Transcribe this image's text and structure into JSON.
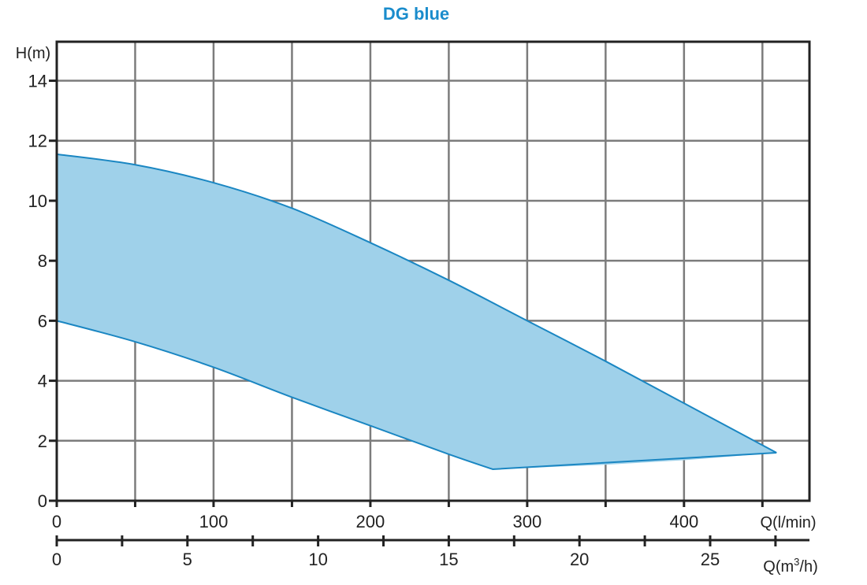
{
  "chart_data": {
    "type": "area",
    "title": "DG blue",
    "ylabel": "H(m)",
    "xlabel": "Q(l/min)",
    "x2label": "Q(m³/h)",
    "x2label_base": "Q(m",
    "x2label_sup": "3",
    "x2label_tail": "/h)",
    "xlim": [
      0,
      480
    ],
    "ylim": [
      0,
      15.3
    ],
    "x_ticks": [
      0,
      100,
      200,
      300,
      400
    ],
    "x_minor_ticks": [
      50,
      150,
      250,
      350,
      450
    ],
    "y_ticks": [
      0,
      2,
      4,
      6,
      8,
      10,
      12,
      14
    ],
    "x2_ticks": [
      0,
      5,
      10,
      15,
      20,
      25
    ],
    "x2_minor_ticks": [
      2.5,
      7.5,
      12.5,
      17.5,
      22.5,
      27.5
    ],
    "x2_per_x": 0.06,
    "grid": true,
    "series": [
      {
        "upper": {
          "x": [
            0,
            50,
            100,
            150,
            200,
            250,
            300,
            350,
            400,
            459
          ],
          "y": [
            11.55,
            11.2,
            10.6,
            9.75,
            8.6,
            7.35,
            6.0,
            4.65,
            3.25,
            1.6
          ]
        },
        "lower": {
          "x": [
            0,
            50,
            100,
            150,
            200,
            250,
            278,
            350,
            400,
            459
          ],
          "y": [
            6.0,
            5.3,
            4.45,
            3.45,
            2.5,
            1.55,
            1.05,
            1.2,
            1.35,
            1.6
          ]
        }
      }
    ],
    "colors": {
      "title": "#1a8ccc",
      "fill": "#9fd1ea",
      "stroke": "#1a86c2",
      "grid": "#7c7c7c",
      "axis": "#222222"
    }
  }
}
